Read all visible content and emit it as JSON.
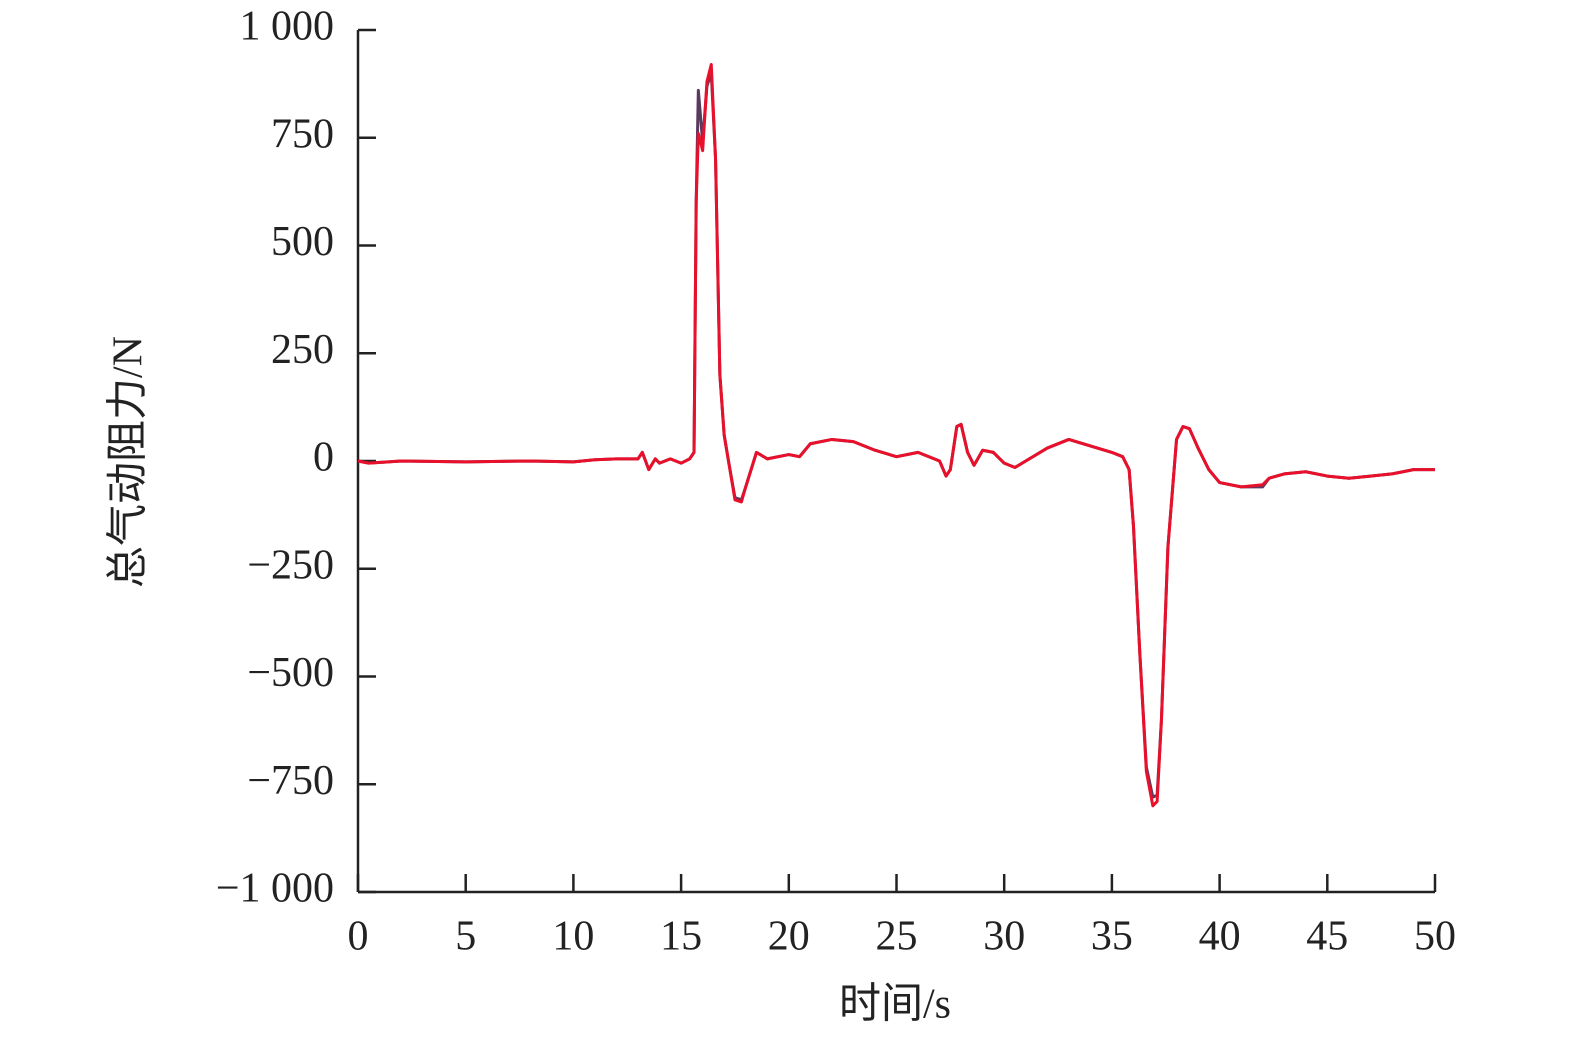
{
  "chart_data": {
    "type": "line",
    "xlabel": "时间/s",
    "ylabel": "总气动阻力/N",
    "x": [
      0,
      0.5,
      2,
      5,
      8,
      10,
      11,
      12,
      13,
      13.2,
      13.5,
      13.8,
      14,
      14.5,
      15,
      15.4,
      15.6,
      15.7,
      15.8,
      16,
      16.2,
      16.4,
      16.6,
      16.8,
      17,
      17.2,
      17.5,
      17.8,
      18,
      18.5,
      19,
      20,
      20.5,
      21,
      22,
      23,
      24,
      25,
      26,
      27,
      27.3,
      27.5,
      27.8,
      28,
      28.3,
      28.6,
      29,
      29.5,
      30,
      30.5,
      31,
      32,
      33,
      34,
      35,
      35.5,
      35.8,
      36,
      36.3,
      36.6,
      36.9,
      37.1,
      37.3,
      37.6,
      38,
      38.3,
      38.6,
      39,
      39.5,
      40,
      41,
      42,
      42.3,
      43,
      44,
      45,
      46,
      47,
      48,
      49,
      50
    ],
    "series": [
      {
        "color": "#5a3a5e",
        "values": [
          0,
          -5,
          0,
          -2,
          0,
          -2,
          3,
          5,
          5,
          20,
          -20,
          5,
          -5,
          5,
          -5,
          5,
          20,
          600,
          860,
          740,
          870,
          900,
          700,
          200,
          60,
          0,
          -85,
          -90,
          -60,
          20,
          5,
          15,
          10,
          40,
          50,
          45,
          25,
          10,
          20,
          0,
          -35,
          -20,
          80,
          85,
          20,
          -10,
          25,
          20,
          -5,
          -15,
          0,
          30,
          50,
          35,
          20,
          10,
          -20,
          -150,
          -450,
          -710,
          -780,
          -775,
          -600,
          -200,
          50,
          80,
          75,
          30,
          -20,
          -50,
          -60,
          -60,
          -40,
          -30,
          -25,
          -35,
          -40,
          -35,
          -30,
          -20,
          -20
        ]
      },
      {
        "color": "#e8102a",
        "values": [
          0,
          -5,
          0,
          -2,
          0,
          -2,
          3,
          5,
          5,
          20,
          -20,
          5,
          -5,
          5,
          -5,
          5,
          20,
          600,
          760,
          720,
          880,
          920,
          700,
          200,
          60,
          0,
          -90,
          -95,
          -60,
          20,
          5,
          15,
          10,
          40,
          50,
          45,
          25,
          10,
          20,
          0,
          -35,
          -20,
          80,
          85,
          20,
          -10,
          25,
          20,
          -5,
          -15,
          0,
          30,
          50,
          35,
          20,
          10,
          -20,
          -150,
          -450,
          -720,
          -800,
          -790,
          -600,
          -200,
          50,
          80,
          75,
          30,
          -20,
          -50,
          -60,
          -55,
          -40,
          -30,
          -25,
          -35,
          -40,
          -35,
          -30,
          -20,
          -20
        ]
      }
    ],
    "xlim": [
      0,
      50
    ],
    "xticks": [
      0,
      5,
      10,
      15,
      20,
      25,
      30,
      35,
      40,
      45,
      50
    ],
    "ylim": [
      -1000,
      1000
    ],
    "yticks": [
      {
        "value": -1000,
        "label": "−1 000"
      },
      {
        "value": -750,
        "label": "−750"
      },
      {
        "value": -500,
        "label": "−500"
      },
      {
        "value": -250,
        "label": "−250"
      },
      0,
      250,
      500,
      750,
      {
        "value": 1000,
        "label": "1 000"
      }
    ],
    "grid": false
  }
}
